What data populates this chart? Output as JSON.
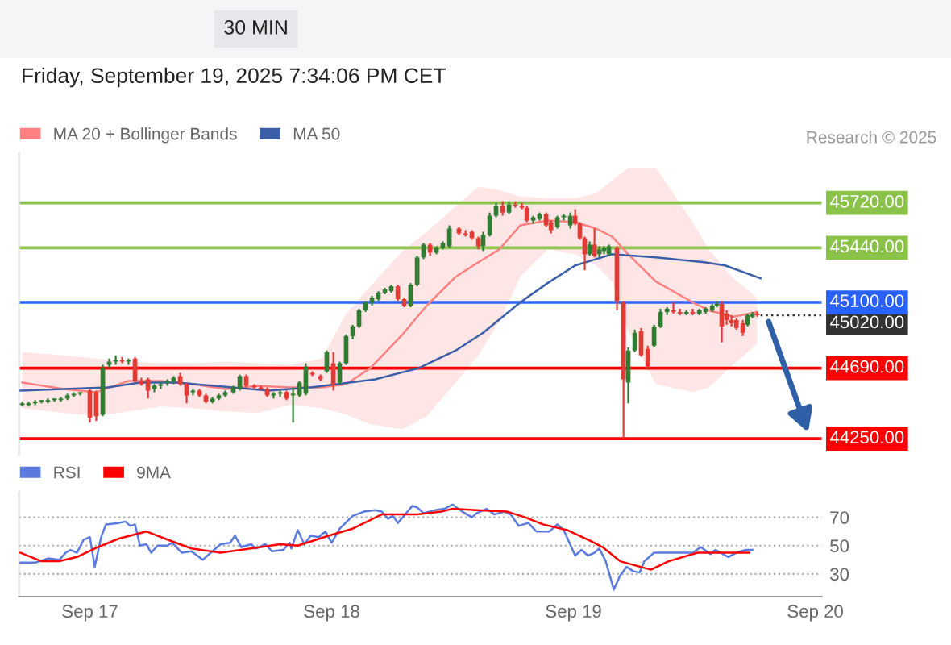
{
  "chart_data": [
    {
      "type": "candlestick",
      "subtitle": "Friday, September 19, 2025 7:34:06 PM CET",
      "annotations": [
        "30 MIN",
        "Research © 2025"
      ],
      "xlim": [
        "2025-09-16T16:58",
        "2025-09-20T00:38"
      ],
      "ylim": [
        44150,
        46030
      ],
      "legend": "top left",
      "series": [
        {
          "type": "candlestick",
          "x": [
            "2025-09-16T17:17",
            "2025-09-16T17:55",
            "2025-09-16T18:34",
            "2025-09-16T19:12",
            "2025-09-16T19:50",
            "2025-09-16T20:29",
            "2025-09-16T21:07",
            "2025-09-16T21:46",
            "2025-09-16T22:24",
            "2025-09-16T23:02",
            "2025-09-17T00:00",
            "2025-09-17T00:38",
            "2025-09-17T01:17",
            "2025-09-17T01:55",
            "2025-09-17T02:34",
            "2025-09-17T03:12",
            "2025-09-17T03:50",
            "2025-09-17T04:29",
            "2025-09-17T05:07",
            "2025-09-17T05:46",
            "2025-09-17T06:24",
            "2025-09-17T07:02",
            "2025-09-17T07:41",
            "2025-09-17T08:19",
            "2025-09-17T08:58",
            "2025-09-17T09:36",
            "2025-09-17T10:14",
            "2025-09-17T10:53",
            "2025-09-17T11:31",
            "2025-09-17T12:10",
            "2025-09-17T12:48",
            "2025-09-17T13:26",
            "2025-09-17T14:14",
            "2025-09-17T14:53",
            "2025-09-17T15:31",
            "2025-09-17T16:19",
            "2025-09-17T16:58",
            "2025-09-17T17:36",
            "2025-09-17T18:14",
            "2025-09-17T18:53",
            "2025-09-17T19:31",
            "2025-09-17T20:10",
            "2025-09-17T20:48",
            "2025-09-17T21:26",
            "2025-09-17T22:05",
            "2025-09-17T22:53",
            "2025-09-17T23:31",
            "2025-09-18T00:10",
            "2025-09-18T00:48",
            "2025-09-18T01:26",
            "2025-09-18T02:05",
            "2025-09-18T02:43",
            "2025-09-18T03:22",
            "2025-09-18T04:00",
            "2025-09-18T04:38",
            "2025-09-18T05:17",
            "2025-09-18T05:55",
            "2025-09-18T06:34",
            "2025-09-18T07:12",
            "2025-09-18T07:50",
            "2025-09-18T08:29",
            "2025-09-18T09:07",
            "2025-09-18T09:46",
            "2025-09-18T10:24",
            "2025-09-18T11:02",
            "2025-09-18T11:41",
            "2025-09-18T12:38",
            "2025-09-18T13:17",
            "2025-09-18T13:55",
            "2025-09-18T14:34",
            "2025-09-18T15:02",
            "2025-09-18T15:41",
            "2025-09-18T16:19",
            "2025-09-18T16:58",
            "2025-09-18T17:36",
            "2025-09-18T18:14",
            "2025-09-18T18:53",
            "2025-09-18T19:22",
            "2025-09-18T20:00",
            "2025-09-18T20:38",
            "2025-09-18T21:17",
            "2025-09-18T21:46",
            "2025-09-18T22:24",
            "2025-09-18T23:02",
            "2025-09-18T23:41",
            "2025-09-19T00:10",
            "2025-09-19T00:38",
            "2025-09-19T01:07",
            "2025-09-19T01:36",
            "2025-09-19T02:05",
            "2025-09-19T02:34",
            "2025-09-19T03:02",
            "2025-09-19T03:31",
            "2025-09-19T04:19",
            "2025-09-19T04:58",
            "2025-09-19T05:26",
            "2025-09-19T06:05",
            "2025-09-19T06:43",
            "2025-09-19T07:22",
            "2025-09-19T08:00",
            "2025-09-19T08:38",
            "2025-09-19T09:17",
            "2025-09-19T09:55",
            "2025-09-19T10:34",
            "2025-09-19T11:12",
            "2025-09-19T11:50",
            "2025-09-19T12:29",
            "2025-09-19T13:07",
            "2025-09-19T13:46",
            "2025-09-19T14:14",
            "2025-09-19T14:43",
            "2025-09-19T15:12",
            "2025-09-19T15:41",
            "2025-09-19T16:10",
            "2025-09-19T16:48",
            "2025-09-19T17:17",
            "2025-09-19T17:46",
            "2025-09-19T18:14"
          ],
          "ohlc": [
            [
              44460,
              44480,
              44450,
              44470
            ],
            [
              44460,
              44480,
              44450,
              44470
            ],
            [
              44470,
              44490,
              44460,
              44480
            ],
            [
              44480,
              44490,
              44470,
              44490
            ],
            [
              44480,
              44500,
              44470,
              44490
            ],
            [
              44490,
              44500,
              44480,
              44500
            ],
            [
              44490,
              44510,
              44480,
              44500
            ],
            [
              44500,
              44530,
              44490,
              44520
            ],
            [
              44520,
              44540,
              44510,
              44530
            ],
            [
              44530,
              44540,
              44520,
              44540
            ],
            [
              44550,
              44560,
              44350,
              44380
            ],
            [
              44540,
              44550,
              44360,
              44390
            ],
            [
              44400,
              44710,
              44390,
              44690
            ],
            [
              44710,
              44750,
              44690,
              44730
            ],
            [
              44730,
              44770,
              44710,
              44740
            ],
            [
              44740,
              44760,
              44720,
              44730
            ],
            [
              44730,
              44750,
              44710,
              44740
            ],
            [
              44750,
              44760,
              44600,
              44610
            ],
            [
              44610,
              44630,
              44580,
              44590
            ],
            [
              44620,
              44630,
              44500,
              44550
            ],
            [
              44560,
              44590,
              44540,
              44580
            ],
            [
              44580,
              44600,
              44560,
              44590
            ],
            [
              44600,
              44620,
              44580,
              44610
            ],
            [
              44610,
              44640,
              44590,
              44630
            ],
            [
              44640,
              44660,
              44580,
              44590
            ],
            [
              44590,
              44600,
              44470,
              44520
            ],
            [
              44540,
              44560,
              44520,
              44550
            ],
            [
              44550,
              44560,
              44510,
              44520
            ],
            [
              44520,
              44530,
              44470,
              44480
            ],
            [
              44480,
              44510,
              44470,
              44500
            ],
            [
              44500,
              44530,
              44490,
              44520
            ],
            [
              44520,
              44550,
              44510,
              44540
            ],
            [
              44540,
              44580,
              44530,
              44570
            ],
            [
              44560,
              44650,
              44550,
              44640
            ],
            [
              44640,
              44650,
              44570,
              44580
            ],
            [
              44580,
              44590,
              44560,
              44570
            ],
            [
              44570,
              44580,
              44550,
              44560
            ],
            [
              44560,
              44570,
              44510,
              44520
            ],
            [
              44520,
              44540,
              44500,
              44530
            ],
            [
              44530,
              44550,
              44510,
              44540
            ],
            [
              44540,
              44550,
              44490,
              44500
            ],
            [
              44520,
              44570,
              44350,
              44530
            ],
            [
              44520,
              44610,
              44510,
              44600
            ],
            [
              44530,
              44720,
              44520,
              44700
            ],
            [
              44660,
              44670,
              44640,
              44650
            ],
            [
              44640,
              44650,
              44610,
              44620
            ],
            [
              44670,
              44800,
              44660,
              44790
            ],
            [
              44720,
              44790,
              44550,
              44590
            ],
            [
              44600,
              44730,
              44590,
              44720
            ],
            [
              44720,
              44900,
              44710,
              44890
            ],
            [
              44890,
              44960,
              44870,
              44950
            ],
            [
              44950,
              45060,
              44940,
              45050
            ],
            [
              45050,
              45110,
              45040,
              45100
            ],
            [
              45100,
              45140,
              45080,
              45130
            ],
            [
              45120,
              45170,
              45110,
              45160
            ],
            [
              45160,
              45190,
              45150,
              45180
            ],
            [
              45170,
              45210,
              45160,
              45200
            ],
            [
              45200,
              45210,
              45110,
              45120
            ],
            [
              45120,
              45130,
              45070,
              45080
            ],
            [
              45080,
              45220,
              45070,
              45210
            ],
            [
              45210,
              45390,
              45200,
              45380
            ],
            [
              45380,
              45470,
              45370,
              45460
            ],
            [
              45460,
              45470,
              45390,
              45410
            ],
            [
              45410,
              45450,
              45400,
              45440
            ],
            [
              45440,
              45480,
              45430,
              45470
            ],
            [
              45450,
              45580,
              45440,
              45560
            ],
            [
              45560,
              45570,
              45520,
              45530
            ],
            [
              45530,
              45550,
              45510,
              45520
            ],
            [
              45540,
              45550,
              45490,
              45500
            ],
            [
              45500,
              45510,
              45430,
              45450
            ],
            [
              45450,
              45540,
              45420,
              45520
            ],
            [
              45520,
              45660,
              45510,
              45640
            ],
            [
              45640,
              45720,
              45630,
              45700
            ],
            [
              45700,
              45730,
              45640,
              45660
            ],
            [
              45660,
              45730,
              45650,
              45710
            ],
            [
              45710,
              45730,
              45690,
              45700
            ],
            [
              45700,
              45720,
              45680,
              45690
            ],
            [
              45690,
              45700,
              45600,
              45610
            ],
            [
              45610,
              45640,
              45590,
              45630
            ],
            [
              45620,
              45660,
              45610,
              45650
            ],
            [
              45650,
              45660,
              45570,
              45580
            ],
            [
              45600,
              45610,
              45530,
              45550
            ],
            [
              45570,
              45640,
              45560,
              45630
            ],
            [
              45630,
              45650,
              45610,
              45640
            ],
            [
              45580,
              45660,
              45560,
              45640
            ],
            [
              45640,
              45680,
              45580,
              45590
            ],
            [
              45590,
              45600,
              45490,
              45500
            ],
            [
              45500,
              45510,
              45300,
              45400
            ],
            [
              45400,
              45480,
              45390,
              45460
            ],
            [
              45460,
              45560,
              45380,
              45390
            ],
            [
              45400,
              45450,
              45380,
              45430
            ],
            [
              45420,
              45450,
              45400,
              45440
            ],
            [
              45400,
              45460,
              45390,
              45450
            ],
            [
              45440,
              45450,
              45050,
              45110
            ],
            [
              45100,
              45110,
              44250,
              44620
            ],
            [
              44600,
              44820,
              44470,
              44800
            ],
            [
              44800,
              44930,
              44790,
              44910
            ],
            [
              44920,
              44940,
              44760,
              44770
            ],
            [
              44810,
              44830,
              44680,
              44700
            ],
            [
              44830,
              44960,
              44820,
              44950
            ],
            [
              44950,
              45060,
              44940,
              45040
            ],
            [
              45040,
              45070,
              45020,
              45060
            ],
            [
              45050,
              45100,
              45030,
              45040
            ],
            [
              45040,
              45060,
              45020,
              45030
            ],
            [
              45030,
              45050,
              45020,
              45040
            ],
            [
              45040,
              45060,
              45020,
              45030
            ],
            [
              45030,
              45060,
              45020,
              45050
            ],
            [
              45040,
              45070,
              45030,
              45060
            ],
            [
              45050,
              45090,
              45040,
              45080
            ],
            [
              45080,
              45110,
              45070,
              45090
            ],
            [
              45090,
              45110,
              44850,
              44950
            ],
            [
              45030,
              45050,
              44960,
              44990
            ],
            [
              44990,
              45020,
              44950,
              44970
            ],
            [
              44990,
              45000,
              44930,
              44940
            ],
            [
              44970,
              44990,
              44890,
              44910
            ],
            [
              44960,
              45030,
              44950,
              45020
            ],
            [
              45010,
              45040,
              45000,
              45030
            ],
            [
              45030,
              45040,
              45010,
              45020
            ]
          ],
          "colors": [
            "#2e7d32",
            "#2e7d32",
            "#2e7d32",
            "#2e7d32",
            "#2e7d32",
            "#2e7d32",
            "#2e7d32",
            "#2e7d32",
            "#2e7d32",
            "#2e7d32",
            "#e53935",
            "#e53935",
            "#2e7d32",
            "#2e7d32",
            "#2e7d32",
            "#e53935",
            "#2e7d32",
            "#e53935",
            "#e53935",
            "#e53935",
            "#2e7d32",
            "#2e7d32",
            "#2e7d32",
            "#2e7d32",
            "#e53935",
            "#e53935",
            "#2e7d32",
            "#e53935",
            "#e53935",
            "#2e7d32",
            "#2e7d32",
            "#2e7d32",
            "#2e7d32",
            "#2e7d32",
            "#e53935",
            "#e53935",
            "#e53935",
            "#e53935",
            "#2e7d32",
            "#2e7d32",
            "#e53935",
            "#2e7d32",
            "#2e7d32",
            "#2e7d32",
            "#e53935",
            "#e53935",
            "#2e7d32",
            "#e53935",
            "#2e7d32",
            "#2e7d32",
            "#2e7d32",
            "#2e7d32",
            "#2e7d32",
            "#2e7d32",
            "#2e7d32",
            "#2e7d32",
            "#2e7d32",
            "#e53935",
            "#e53935",
            "#2e7d32",
            "#2e7d32",
            "#2e7d32",
            "#e53935",
            "#2e7d32",
            "#2e7d32",
            "#2e7d32",
            "#e53935",
            "#e53935",
            "#e53935",
            "#e53935",
            "#2e7d32",
            "#2e7d32",
            "#2e7d32",
            "#e53935",
            "#2e7d32",
            "#e53935",
            "#e53935",
            "#e53935",
            "#2e7d32",
            "#2e7d32",
            "#e53935",
            "#e53935",
            "#2e7d32",
            "#2e7d32",
            "#2e7d32",
            "#e53935",
            "#e53935",
            "#e53935",
            "#2e7d32",
            "#e53935",
            "#2e7d32",
            "#2e7d32",
            "#2e7d32",
            "#e53935",
            "#e53935",
            "#2e7d32",
            "#2e7d32",
            "#e53935",
            "#e53935",
            "#2e7d32",
            "#2e7d32",
            "#2e7d32",
            "#e53935",
            "#e53935",
            "#2e7d32",
            "#e53935",
            "#2e7d32",
            "#2e7d32",
            "#2e7d32",
            "#2e7d32",
            "#e53935",
            "#e53935",
            "#e53935",
            "#e53935",
            "#e53935",
            "#2e7d32",
            "#2e7d32",
            "#e53935"
          ]
        },
        {
          "type": "line",
          "name": "MA 20 + Bollinger Bands",
          "color": "#ff8080",
          "x": [
            "2025-09-16T17:17",
            "2025-09-16T21:26",
            "2025-09-17T00:38",
            "2025-09-17T03:50",
            "2025-09-17T07:02",
            "2025-09-17T10:14",
            "2025-09-17T13:26",
            "2025-09-17T16:38",
            "2025-09-17T19:50",
            "2025-09-17T23:02",
            "2025-09-18T01:26",
            "2025-09-18T03:50",
            "2025-09-18T07:02",
            "2025-09-18T09:26",
            "2025-09-18T12:19",
            "2025-09-18T14:34",
            "2025-09-18T16:38",
            "2025-09-18T18:43",
            "2025-09-18T21:26",
            "2025-09-19T00:10",
            "2025-09-19T02:14",
            "2025-09-19T03:50",
            "2025-09-19T05:26",
            "2025-09-19T08:10",
            "2025-09-19T11:50",
            "2025-09-19T13:26",
            "2025-09-19T15:50",
            "2025-09-19T18:14"
          ],
          "values": [
            44600,
            44560,
            44540,
            44610,
            44610,
            44590,
            44560,
            44580,
            44570,
            44570,
            44590,
            44690,
            44900,
            45080,
            45260,
            45350,
            45430,
            45580,
            45610,
            45600,
            45560,
            45510,
            45400,
            45230,
            45100,
            45050,
            45010,
            45040
          ],
          "upper": [
            44790,
            44770,
            44750,
            44730,
            44720,
            44720,
            44730,
            44720,
            44710,
            44750,
            45030,
            45200,
            45420,
            45540,
            45700,
            45820,
            45800,
            45760,
            45750,
            45750,
            45780,
            45860,
            45940,
            45940,
            45600,
            45430,
            45250,
            45130
          ],
          "lower": [
            44440,
            44410,
            44390,
            44420,
            44450,
            44440,
            44420,
            44410,
            44460,
            44440,
            44400,
            44340,
            44310,
            44390,
            44600,
            44770,
            44980,
            45260,
            45430,
            45400,
            45330,
            45230,
            44920,
            44590,
            44540,
            44570,
            44710,
            44840
          ]
        },
        {
          "type": "line",
          "name": "MA 50",
          "color": "#3a5fa8",
          "x": [
            "2025-09-16T17:07",
            "2025-09-17T01:46",
            "2025-09-17T04:58",
            "2025-09-17T08:38",
            "2025-09-17T12:19",
            "2025-09-17T17:46",
            "2025-09-17T21:55",
            "2025-09-18T04:19",
            "2025-09-18T08:38",
            "2025-09-18T12:19",
            "2025-09-18T15:02",
            "2025-09-18T18:43",
            "2025-09-18T21:26",
            "2025-09-19T00:10",
            "2025-09-19T03:50",
            "2025-09-19T08:10",
            "2025-09-19T12:58",
            "2025-09-19T15:02",
            "2025-09-19T18:34"
          ],
          "values": [
            44550,
            44570,
            44600,
            44600,
            44580,
            44550,
            44570,
            44620,
            44690,
            44800,
            44910,
            45100,
            45220,
            45330,
            45400,
            45380,
            45350,
            45330,
            45250
          ]
        }
      ],
      "ref_lines": [
        {
          "axis": "y",
          "value": 45720,
          "label": "45720.00",
          "color": "#8bc34a"
        },
        {
          "axis": "y",
          "value": 45440,
          "label": "45440.00",
          "color": "#8bc34a"
        },
        {
          "axis": "y",
          "value": 45020,
          "label": "45020.00",
          "color": "#333333",
          "line_style": "dotted"
        },
        {
          "axis": "y",
          "value": 45100,
          "label": "45100.00",
          "color": "#2962ff"
        },
        {
          "axis": "y",
          "value": 44690,
          "label": "44690.00",
          "color": "#ff0000"
        },
        {
          "axis": "y",
          "value": 44250,
          "label": "44250.00",
          "color": "#ff0000"
        }
      ]
    },
    {
      "type": "line",
      "xlim": [
        "2025-09-16T16:58",
        "2025-09-20T00:38"
      ],
      "ylim": [
        14,
        88
      ],
      "yticks": [
        30,
        50,
        70
      ],
      "grid": "y",
      "legend": "top left",
      "xticks": [
        {
          "value": "2025-09-17",
          "label": "Sep 17"
        },
        {
          "value": "2025-09-18",
          "label": "Sep 18"
        },
        {
          "value": "2025-09-19",
          "label": "Sep 19"
        },
        {
          "value": "2025-09-20",
          "label": "Sep 20"
        }
      ],
      "series": [
        {
          "name": "RSI",
          "color": "#5b7be0",
          "x": [
            "2025-09-16T17:07",
            "2025-09-16T18:34",
            "2025-09-16T19:50",
            "2025-09-16T20:58",
            "2025-09-16T21:36",
            "2025-09-16T22:05",
            "2025-09-16T22:43",
            "2025-09-16T23:22",
            "2025-09-17T00:00",
            "2025-09-17T00:29",
            "2025-09-17T01:07",
            "2025-09-17T01:36",
            "2025-09-17T02:53",
            "2025-09-17T03:31",
            "2025-09-17T04:00",
            "2025-09-17T04:29",
            "2025-09-17T04:58",
            "2025-09-17T05:36",
            "2025-09-17T06:05",
            "2025-09-17T06:43",
            "2025-09-17T07:41",
            "2025-09-17T08:10",
            "2025-09-17T09:07",
            "2025-09-17T10:05",
            "2025-09-17T11:12",
            "2025-09-17T12:00",
            "2025-09-17T12:58",
            "2025-09-17T13:55",
            "2025-09-17T14:24",
            "2025-09-17T15:02",
            "2025-09-17T16:00",
            "2025-09-17T16:29",
            "2025-09-17T17:26",
            "2025-09-17T18:05",
            "2025-09-17T19:12",
            "2025-09-17T19:50",
            "2025-09-17T20:00",
            "2025-09-17T20:38",
            "2025-09-17T21:17",
            "2025-09-17T21:55",
            "2025-09-17T22:43",
            "2025-09-17T23:22",
            "2025-09-18T00:00",
            "2025-09-18T00:48",
            "2025-09-18T02:05",
            "2025-09-18T03:12",
            "2025-09-18T04:19",
            "2025-09-18T04:58",
            "2025-09-18T05:36",
            "2025-09-18T06:05",
            "2025-09-18T06:34",
            "2025-09-18T08:00",
            "2025-09-18T08:29",
            "2025-09-18T09:07",
            "2025-09-18T10:14",
            "2025-09-18T11:12",
            "2025-09-18T12:00",
            "2025-09-18T12:58",
            "2025-09-18T13:55",
            "2025-09-18T14:24",
            "2025-09-18T15:22",
            "2025-09-18T16:10",
            "2025-09-18T17:07",
            "2025-09-18T17:46",
            "2025-09-18T18:34",
            "2025-09-18T19:31",
            "2025-09-18T20:19",
            "2025-09-18T21:36",
            "2025-09-18T22:24",
            "2025-09-18T23:02",
            "2025-09-19T00:10",
            "2025-09-19T00:48",
            "2025-09-19T01:26",
            "2025-09-19T02:05",
            "2025-09-19T02:34",
            "2025-09-19T03:12",
            "2025-09-19T04:00",
            "2025-09-19T04:38",
            "2025-09-19T05:17",
            "2025-09-19T05:55",
            "2025-09-19T06:34",
            "2025-09-19T07:02",
            "2025-09-19T08:00",
            "2025-09-19T09:26",
            "2025-09-19T10:34",
            "2025-09-19T11:50",
            "2025-09-19T12:38",
            "2025-09-19T13:36",
            "2025-09-19T14:05",
            "2025-09-19T15:22",
            "2025-09-19T16:10",
            "2025-09-19T17:07",
            "2025-09-19T17:46"
          ],
          "values": [
            38,
            38,
            41,
            40,
            45,
            47,
            45,
            54,
            56,
            35,
            56,
            65,
            66,
            67,
            64,
            65,
            50,
            51,
            45,
            50,
            50,
            52,
            45,
            46,
            40,
            45,
            51,
            52,
            57,
            49,
            51,
            48,
            51,
            46,
            47,
            52,
            48,
            61,
            51,
            57,
            56,
            60,
            52,
            62,
            71,
            74,
            75,
            74,
            69,
            71,
            66,
            78,
            77,
            73,
            75,
            76,
            79,
            74,
            70,
            73,
            76,
            72,
            74,
            72,
            64,
            66,
            60,
            60,
            65,
            61,
            43,
            47,
            43,
            45,
            48,
            39,
            19,
            29,
            35,
            32,
            31,
            39,
            45,
            45,
            45,
            45,
            49,
            44,
            47,
            42,
            45,
            47,
            47
          ]
        },
        {
          "name": "9MA",
          "color": "#ff0000",
          "x": [
            "2025-09-16T17:07",
            "2025-09-16T19:12",
            "2025-09-16T20:58",
            "2025-09-16T22:43",
            "2025-09-17T00:29",
            "2025-09-17T02:53",
            "2025-09-17T05:36",
            "2025-09-17T08:10",
            "2025-09-17T10:05",
            "2025-09-17T12:58",
            "2025-09-17T16:00",
            "2025-09-17T18:53",
            "2025-09-17T20:38",
            "2025-09-17T23:41",
            "2025-09-18T02:05",
            "2025-09-18T04:58",
            "2025-09-18T08:29",
            "2025-09-18T10:53",
            "2025-09-18T12:00",
            "2025-09-18T14:24",
            "2025-09-18T17:26",
            "2025-09-18T19:12",
            "2025-09-18T20:58",
            "2025-09-18T23:22",
            "2025-09-19T01:46",
            "2025-09-19T02:53",
            "2025-09-19T04:38",
            "2025-09-19T07:41",
            "2025-09-19T09:26",
            "2025-09-19T12:19",
            "2025-09-19T15:22",
            "2025-09-19T17:26"
          ],
          "values": [
            45,
            39,
            39,
            42,
            48,
            55,
            60,
            53,
            48,
            45,
            48,
            51,
            50,
            57,
            62,
            72,
            72,
            74,
            76,
            75,
            74,
            70,
            65,
            61,
            53,
            49,
            39,
            33,
            39,
            45,
            45,
            45
          ]
        }
      ]
    }
  ]
}
